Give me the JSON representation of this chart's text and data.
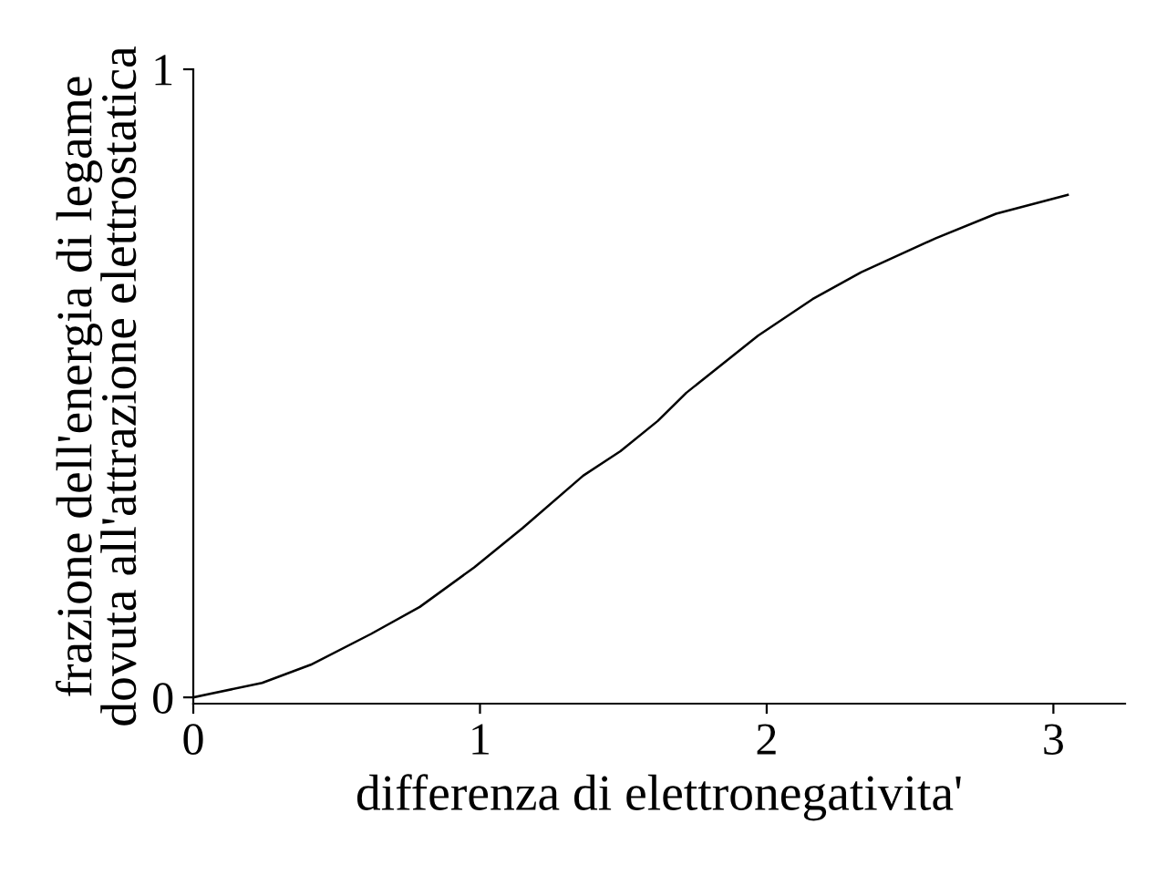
{
  "chart_data": {
    "type": "line",
    "xlabel": "differenza di elettronegativita'",
    "ylabel": "frazione dell'energia di legame\ndovuta all'attrazione elettrostatica",
    "series": [
      {
        "color": "#000000",
        "x": [
          0,
          0.24,
          0.41,
          0.62,
          0.79,
          0.98,
          1.15,
          1.36,
          1.49,
          1.62,
          1.72,
          1.97,
          2.16,
          2.33,
          2.59,
          2.8,
          3.05
        ],
        "values": [
          0,
          0.023,
          0.052,
          0.101,
          0.144,
          0.207,
          0.27,
          0.353,
          0.392,
          0.44,
          0.485,
          0.576,
          0.634,
          0.677,
          0.731,
          0.77,
          0.8
        ]
      }
    ],
    "xlim": [
      0,
      3.25
    ],
    "ylim": [
      -0.01,
      1
    ],
    "xticks": [
      0,
      1,
      2,
      3
    ],
    "yticks": [
      0,
      1
    ],
    "grid": false,
    "legend": false,
    "marker": "none",
    "line_style": "solid"
  }
}
